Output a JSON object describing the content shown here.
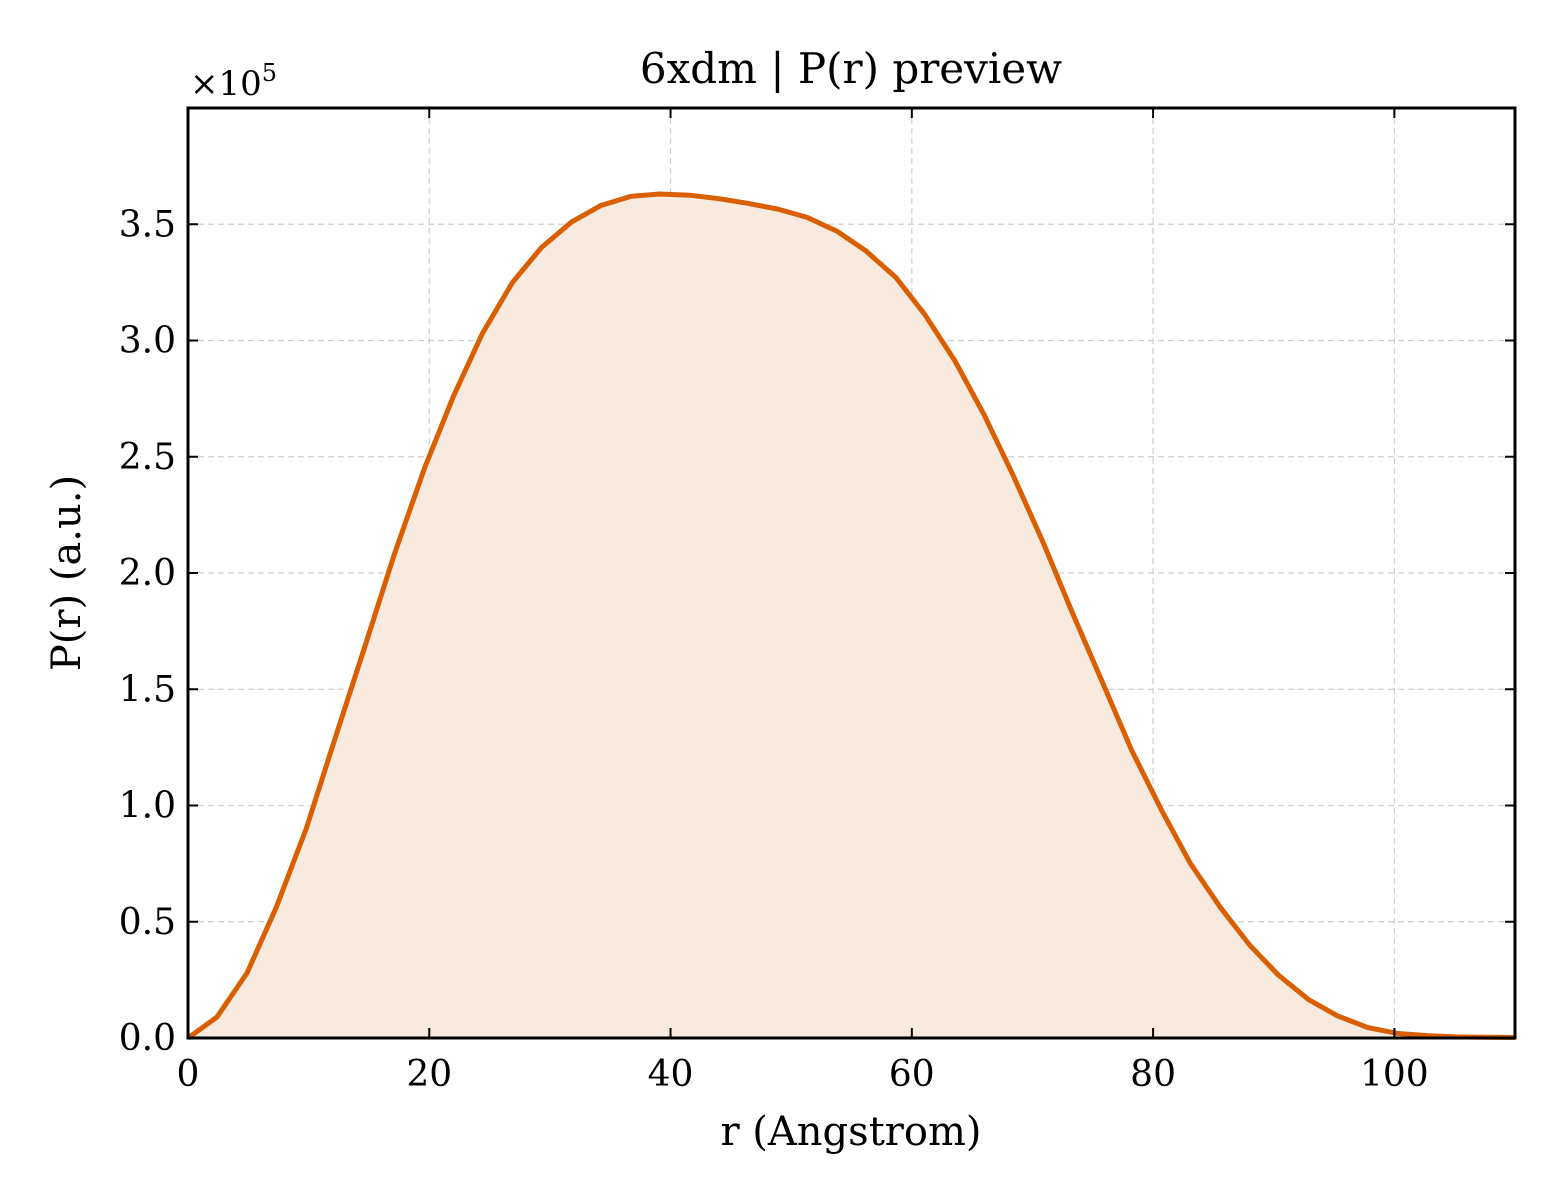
{
  "chart_data": {
    "type": "area",
    "title": "6xdm | P(r) preview",
    "xlabel": "r (Angstrom)",
    "ylabel": "P(r) (a.u.)",
    "y_multiplier_label": "×10",
    "y_multiplier_exponent": "5",
    "xlim": [
      0,
      110
    ],
    "ylim": [
      0,
      4.0
    ],
    "x_ticks": [
      0,
      20,
      40,
      60,
      80,
      100
    ],
    "x_tick_labels": [
      "0",
      "20",
      "40",
      "60",
      "80",
      "100"
    ],
    "y_ticks": [
      0.0,
      0.5,
      1.0,
      1.5,
      2.0,
      2.5,
      3.0,
      3.5
    ],
    "y_tick_labels": [
      "0.0",
      "0.5",
      "1.0",
      "1.5",
      "2.0",
      "2.5",
      "3.0",
      "3.5"
    ],
    "grid": true,
    "line_color": "#d95f02",
    "fill_color": "#f8eadf",
    "series": [
      {
        "x": [
          0,
          2.4,
          4.9,
          7.3,
          9.8,
          12.2,
          14.7,
          17.1,
          19.6,
          22.0,
          24.4,
          26.9,
          29.3,
          31.8,
          34.2,
          36.7,
          39.1,
          41.6,
          44.0,
          46.4,
          48.9,
          51.3,
          53.8,
          56.2,
          58.7,
          61.1,
          63.6,
          66.0,
          68.4,
          70.9,
          73.3,
          75.8,
          78.2,
          80.7,
          83.1,
          85.6,
          88.0,
          90.4,
          92.9,
          95.3,
          97.8,
          100.2,
          102.7,
          105.1,
          107.6,
          110.0
        ],
        "y": [
          0.0,
          0.09,
          0.28,
          0.56,
          0.9,
          1.29,
          1.69,
          2.08,
          2.45,
          2.76,
          3.03,
          3.25,
          3.4,
          3.51,
          3.58,
          3.62,
          3.63,
          3.625,
          3.61,
          3.59,
          3.565,
          3.53,
          3.47,
          3.385,
          3.27,
          3.11,
          2.91,
          2.68,
          2.42,
          2.13,
          1.83,
          1.53,
          1.24,
          0.98,
          0.75,
          0.56,
          0.4,
          0.27,
          0.165,
          0.095,
          0.045,
          0.02,
          0.01,
          0.005,
          0.003,
          0.002
        ]
      }
    ]
  }
}
